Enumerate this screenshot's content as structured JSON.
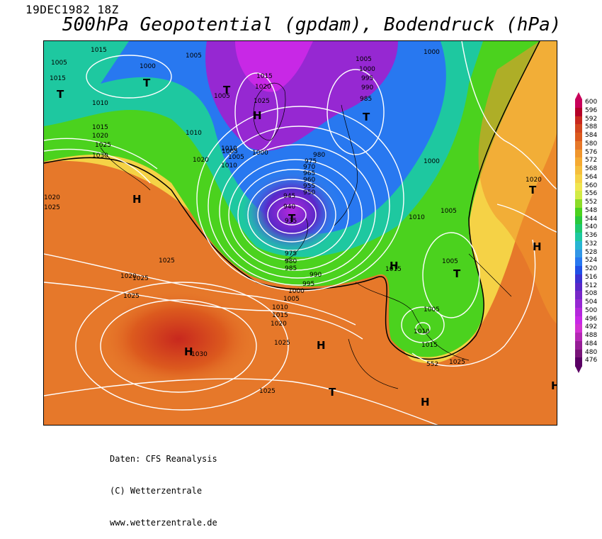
{
  "header": {
    "date": "19DEC1982 18Z",
    "title": "500hPa Geopotential (gpdam), Bodendruck (hPa)"
  },
  "legend": {
    "ticks": [
      "600",
      "596",
      "592",
      "588",
      "584",
      "580",
      "576",
      "572",
      "568",
      "564",
      "560",
      "556",
      "552",
      "548",
      "544",
      "540",
      "536",
      "532",
      "528",
      "524",
      "520",
      "516",
      "512",
      "508",
      "504",
      "500",
      "496",
      "492",
      "488",
      "484",
      "480",
      "476"
    ],
    "colors": [
      "#c8005a",
      "#b40028",
      "#c8281e",
      "#d2461e",
      "#dc5a1e",
      "#e6782a",
      "#f0962d",
      "#f5aa32",
      "#f5be3c",
      "#f5d246",
      "#f0e650",
      "#d2eb46",
      "#8cdc28",
      "#4bd21e",
      "#28c83c",
      "#1ec86e",
      "#1ec8a0",
      "#28b4d2",
      "#3296e6",
      "#2878f0",
      "#2050e6",
      "#3c32d2",
      "#5a28c8",
      "#7828c8",
      "#9628d2",
      "#b428dc",
      "#c828e6",
      "#d232d2",
      "#b428b4",
      "#961e96",
      "#781478",
      "#5a0064"
    ]
  },
  "map": {
    "isobar_labels": [
      "1015",
      "1005",
      "1000",
      "1015",
      "1005",
      "1010",
      "1010",
      "1005",
      "1005",
      "1005",
      "1000",
      "995",
      "990",
      "985",
      "1015",
      "1020",
      "1025",
      "1015",
      "1020",
      "1025",
      "1030",
      "1010",
      "1000",
      "1010",
      "1005",
      "1020",
      "1000",
      "980",
      "975",
      "970",
      "965",
      "960",
      "955",
      "950",
      "945",
      "940",
      "935",
      "1020",
      "1000",
      "1010",
      "1005",
      "975",
      "980",
      "985",
      "990",
      "995",
      "1000",
      "1005",
      "1010",
      "1015",
      "1020",
      "1025",
      "1025",
      "1020",
      "1025",
      "1030",
      "1025",
      "1025",
      "1015",
      "1005",
      "1005",
      "1010",
      "1015",
      "1025",
      "1020",
      "1025"
    ],
    "contour_label": "552",
    "pressure_centers": [
      "T",
      "T",
      "T",
      "T",
      "H",
      "T",
      "H",
      "T",
      "T",
      "H",
      "H",
      "H",
      "T",
      "H",
      "H",
      "H"
    ]
  },
  "footer": {
    "line1": "Daten: CFS Reanalysis",
    "line2": "(C) Wetterzentrale",
    "line3": "www.wetterzentrale.de"
  }
}
